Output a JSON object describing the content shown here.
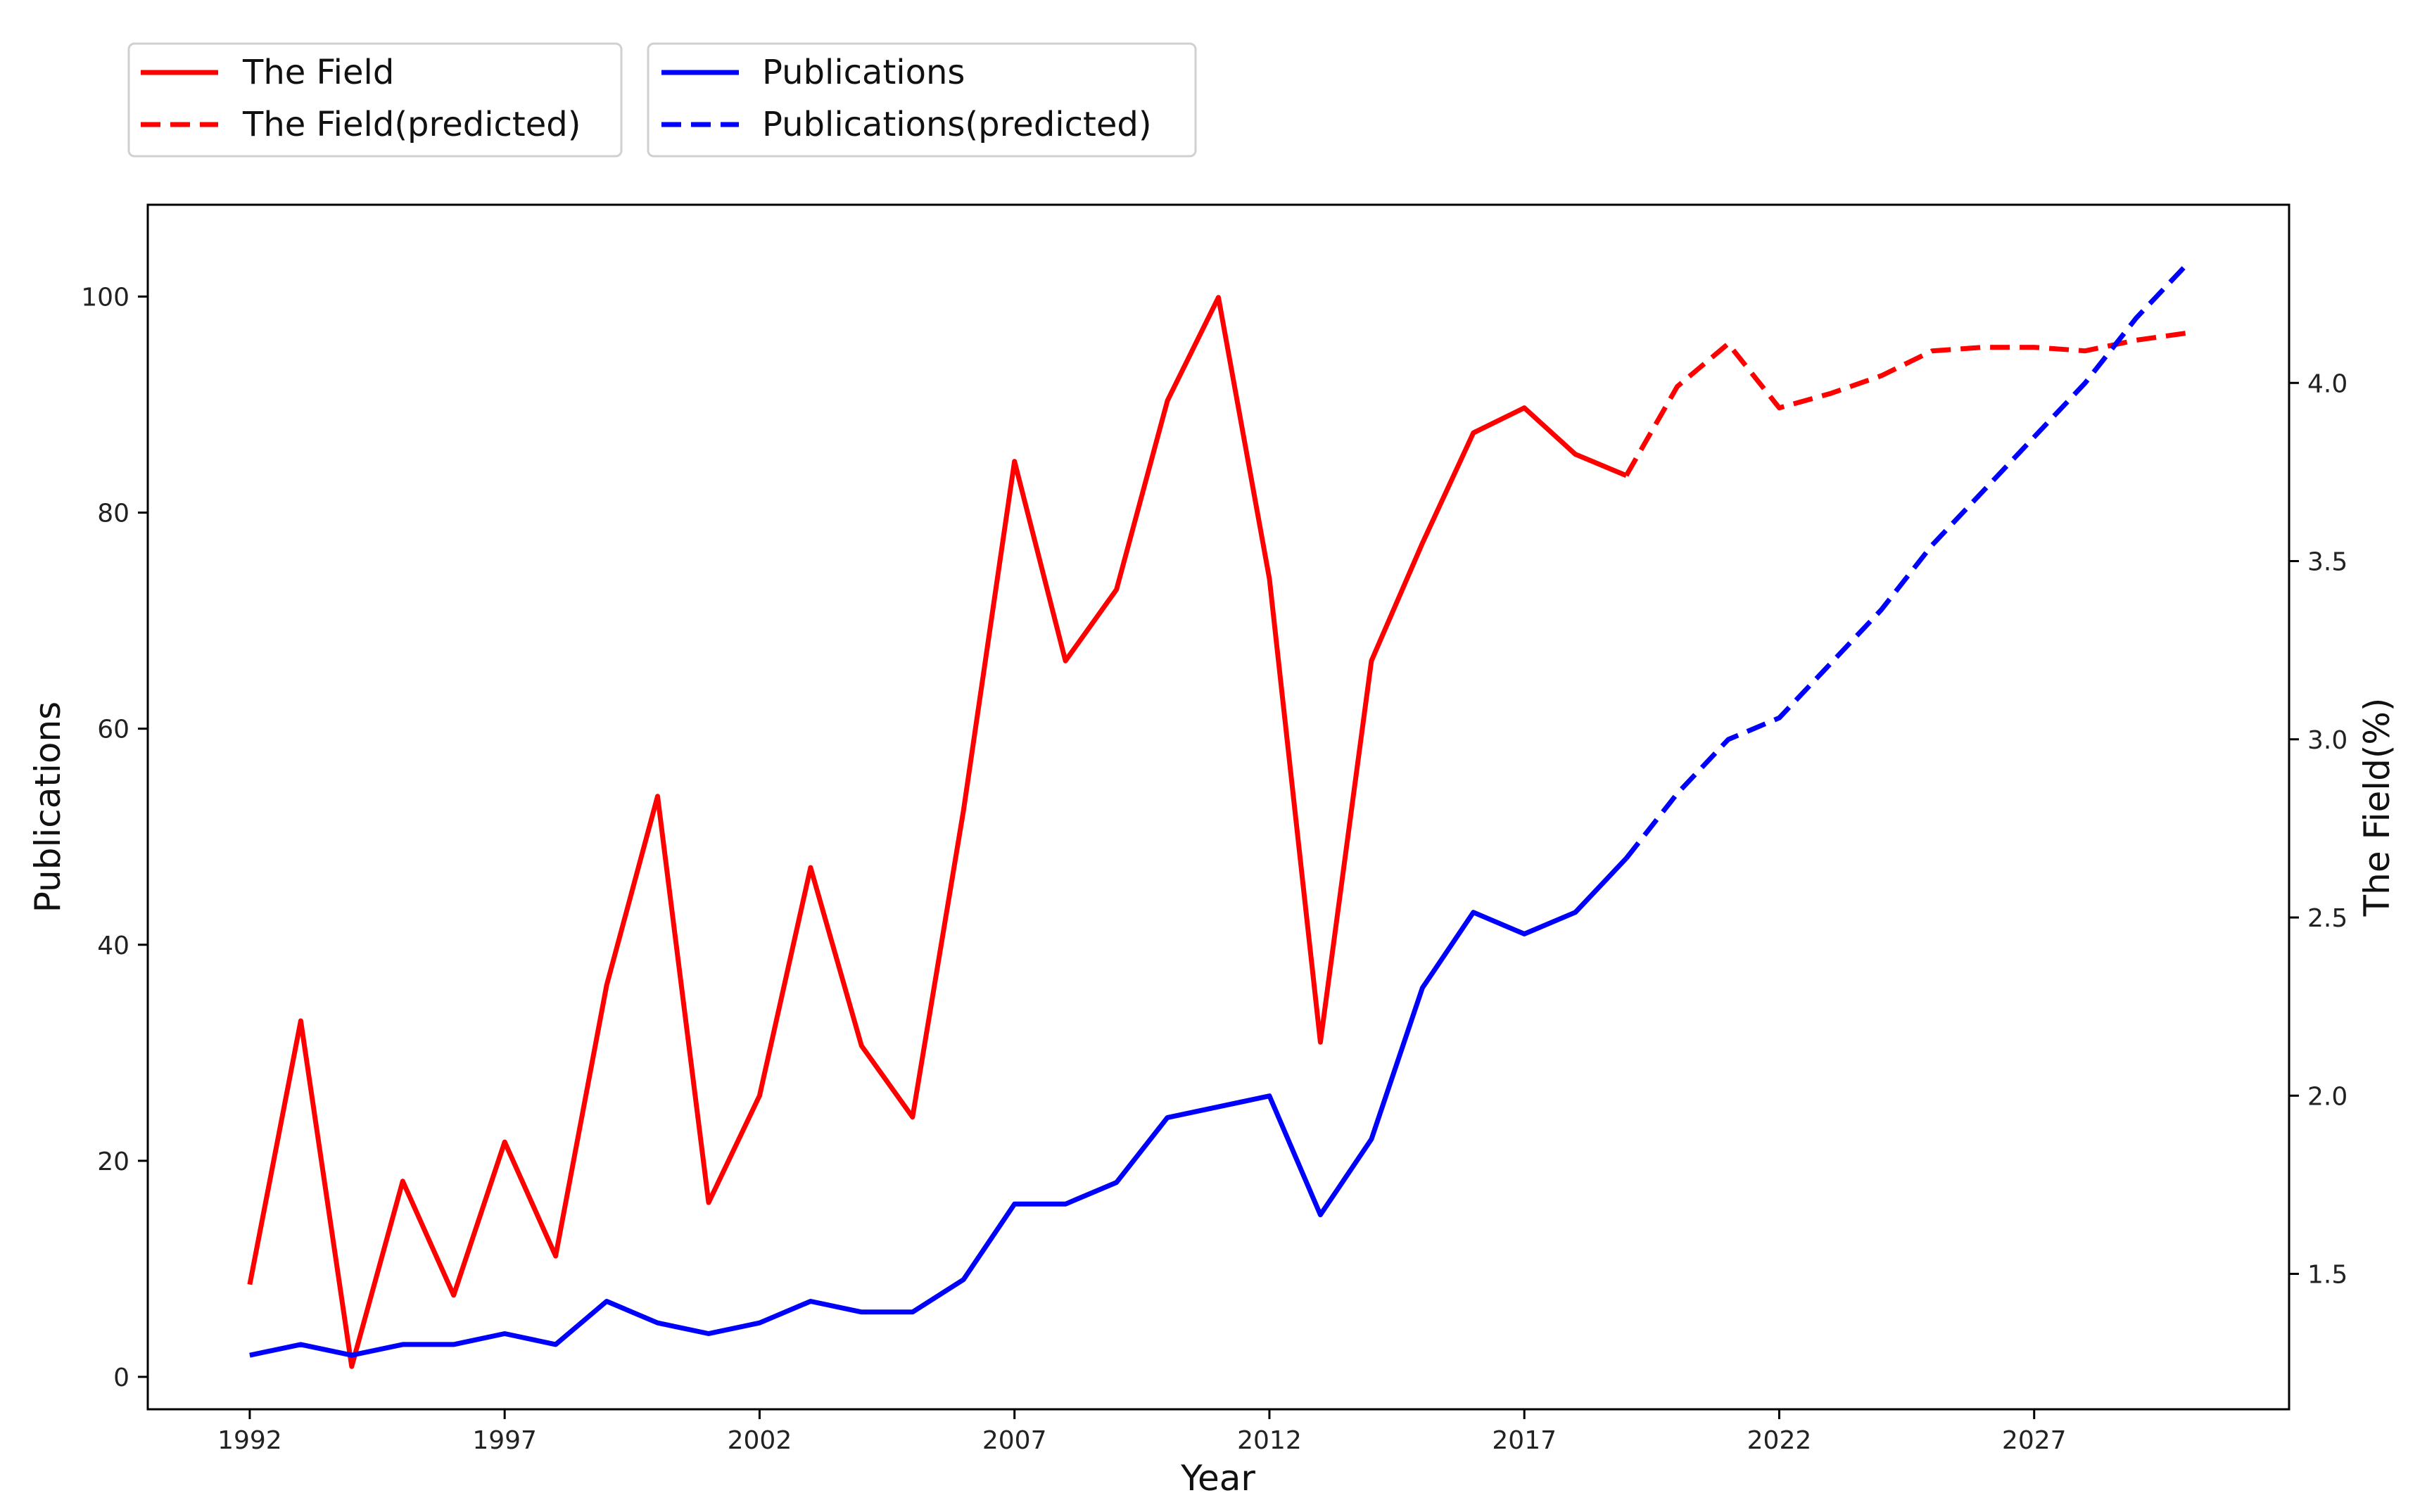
{
  "chart_data": {
    "type": "line",
    "title": "",
    "xlabel": "Year",
    "ylabel_left": "Publications",
    "ylabel_right": "The Field(%)",
    "xlim": [
      1990,
      2032
    ],
    "ylim_left": [
      -3,
      108.5
    ],
    "ylim_right": [
      1.12,
      4.5
    ],
    "x_ticks": [
      1992,
      1997,
      2002,
      2007,
      2012,
      2017,
      2022,
      2027
    ],
    "y_ticks_left": [
      0,
      20,
      40,
      60,
      80,
      100
    ],
    "y_ticks_right": [
      1.5,
      2.0,
      2.5,
      3.0,
      3.5,
      4.0
    ],
    "grid": false,
    "legend_placement": "top-left, above plot",
    "series": [
      {
        "name": "The Field",
        "axis": "right",
        "color": "#ff0000",
        "style": "solid",
        "x": [
          1992,
          1993,
          1994,
          1995,
          1996,
          1997,
          1998,
          1999,
          2000,
          2001,
          2002,
          2003,
          2004,
          2005,
          2006,
          2007,
          2008,
          2009,
          2010,
          2011,
          2012,
          2013,
          2014,
          2015,
          2016,
          2017,
          2018,
          2019
        ],
        "values": [
          1.47,
          2.21,
          1.24,
          1.76,
          1.44,
          1.87,
          1.55,
          2.31,
          2.84,
          1.7,
          2.0,
          2.64,
          2.14,
          1.94,
          2.8,
          3.78,
          3.22,
          3.42,
          3.95,
          4.24,
          3.45,
          2.15,
          3.22,
          3.55,
          3.86,
          3.93,
          3.8,
          3.74
        ]
      },
      {
        "name": "The Field(predicted)",
        "axis": "right",
        "color": "#ff0000",
        "style": "dashed",
        "x": [
          2019,
          2020,
          2021,
          2022,
          2023,
          2024,
          2025,
          2026,
          2027,
          2028,
          2029,
          2030
        ],
        "values": [
          3.74,
          3.99,
          4.11,
          3.93,
          3.97,
          4.02,
          4.09,
          4.1,
          4.1,
          4.09,
          4.12,
          4.14
        ]
      },
      {
        "name": "Publications",
        "axis": "left",
        "color": "#0000ff",
        "style": "solid",
        "x": [
          1992,
          1993,
          1994,
          1995,
          1996,
          1997,
          1998,
          1999,
          2000,
          2001,
          2002,
          2003,
          2004,
          2005,
          2006,
          2007,
          2008,
          2009,
          2010,
          2011,
          2012,
          2013,
          2014,
          2015,
          2016,
          2017,
          2018,
          2019
        ],
        "values": [
          2,
          3,
          2,
          3,
          3,
          4,
          3,
          7,
          5,
          4,
          5,
          7,
          6,
          6,
          9,
          16,
          16,
          18,
          24,
          25,
          26,
          15,
          22,
          36,
          43,
          41,
          43,
          48
        ]
      },
      {
        "name": "Publications(predicted)",
        "axis": "left",
        "color": "#0000ff",
        "style": "dashed",
        "x": [
          2019,
          2020,
          2021,
          2022,
          2023,
          2024,
          2025,
          2026,
          2027,
          2028,
          2029,
          2030
        ],
        "values": [
          48,
          54,
          59,
          61,
          66,
          71,
          77,
          82,
          87,
          92,
          98,
          103
        ]
      }
    ]
  }
}
